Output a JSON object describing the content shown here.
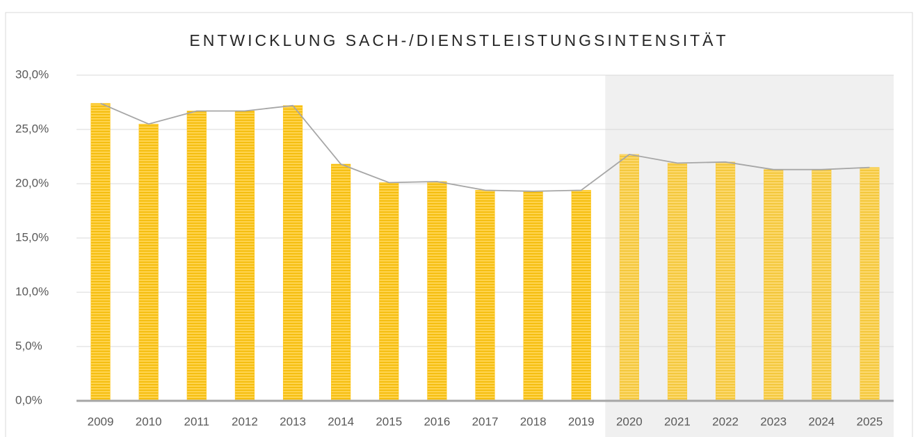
{
  "chart_data": {
    "type": "bar",
    "title": "ENTWICKLUNG SACH-/DIENSTLEISTUNGSINTENSITÄT",
    "categories": [
      "2009",
      "2010",
      "2011",
      "2012",
      "2013",
      "2014",
      "2015",
      "2016",
      "2017",
      "2018",
      "2019",
      "2020",
      "2021",
      "2022",
      "2023",
      "2024",
      "2025"
    ],
    "values": [
      27.4,
      25.5,
      26.7,
      26.7,
      27.2,
      21.8,
      20.1,
      20.2,
      19.4,
      19.3,
      19.4,
      22.7,
      21.9,
      22.0,
      21.3,
      21.3,
      21.5
    ],
    "color": "#ffc000",
    "line": true,
    "line_color": "#a6a6a6",
    "shaded_from": "2020",
    "shade_color": "#f0f0f0",
    "ylim": [
      0,
      30
    ],
    "yticks": [
      {
        "value": 0,
        "label": "0,0%"
      },
      {
        "value": 5,
        "label": "5,0%"
      },
      {
        "value": 10,
        "label": "10,0%"
      },
      {
        "value": 15,
        "label": "15,0%"
      },
      {
        "value": 20,
        "label": "20,0%"
      },
      {
        "value": 25,
        "label": "25,0%"
      },
      {
        "value": 30,
        "label": "30,0%"
      }
    ],
    "grid": true
  }
}
